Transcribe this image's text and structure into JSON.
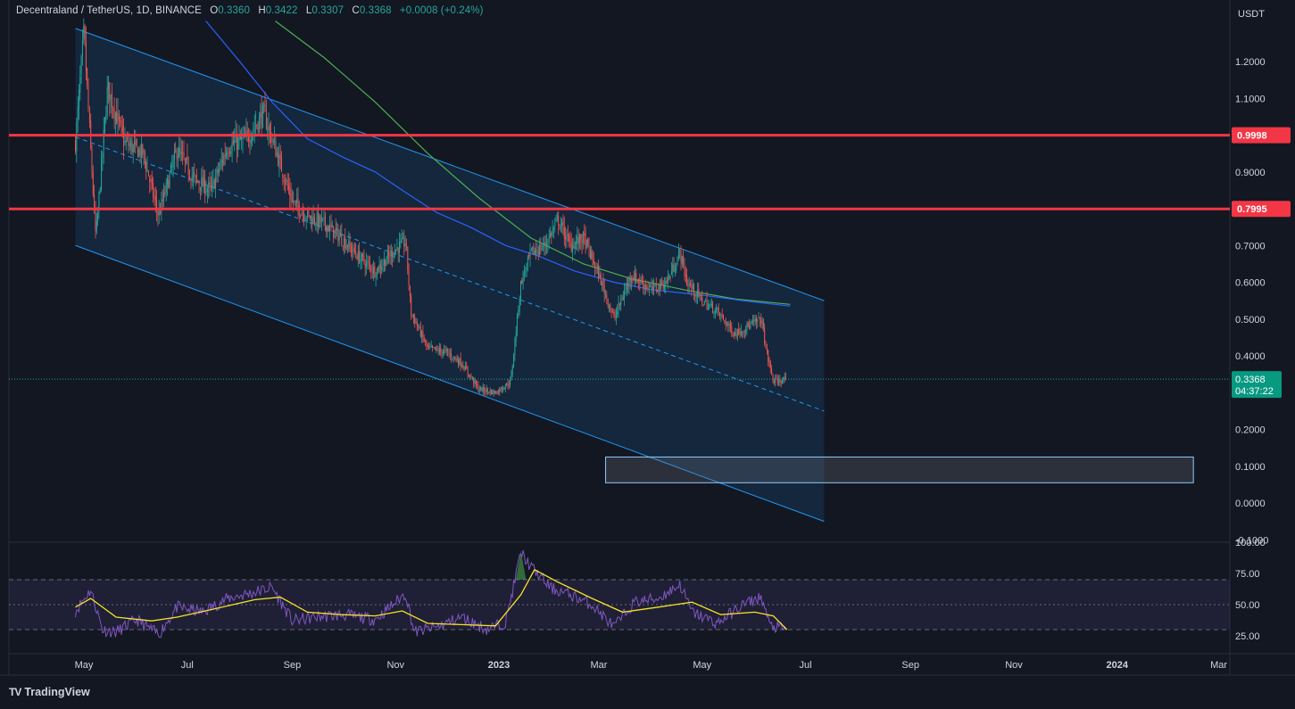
{
  "legend": {
    "symbol": "Decentraland / TetherUS, 1D, BINANCE",
    "o_label": "O",
    "o": "0.3360",
    "h_label": "H",
    "h": "0.3422",
    "l_label": "L",
    "l": "0.3307",
    "c_label": "C",
    "c": "0.3368",
    "change": "+0.0008 (+0.24%)"
  },
  "axis_unit": "USDT",
  "branding": {
    "logo_mark": "TV",
    "name": "TradingView"
  },
  "colors": {
    "background": "#131722",
    "up": "#26a69a",
    "down": "#ef5350",
    "resistance": "#f23645",
    "channel": "#2196f3",
    "ma_blue": "#2962ff",
    "ma_green": "#4caf50",
    "rsi_line": "#7e57c2",
    "rsi_ma": "#f5e32a",
    "price_tag": "#089981"
  },
  "chart_data": [
    {
      "type": "candlestick",
      "title": "Decentraland / TetherUS, 1D, BINANCE",
      "ylabel": "USDT",
      "ylim": [
        -0.1,
        1.3
      ],
      "y_ticks": [
        "1.2000",
        "1.1000",
        "1.0000",
        "0.9000",
        "0.8000",
        "0.7000",
        "0.6000",
        "0.5000",
        "0.4000",
        "0.3000",
        "0.2000",
        "0.1000",
        "0.0000",
        "-0.1000"
      ],
      "x_ticks": [
        "May",
        "Jul",
        "Sep",
        "Nov",
        "2023",
        "Mar",
        "May",
        "Jul",
        "Sep",
        "Nov",
        "2024",
        "Mar"
      ],
      "x_range": [
        "2022-04",
        "2024-03"
      ],
      "last_price": {
        "value": 0.3368,
        "label": "0.3368",
        "countdown": "04:37:22"
      },
      "horizontal_lines": [
        {
          "value": 0.9998,
          "label": "0.9998"
        },
        {
          "value": 0.7995,
          "label": "0.7995"
        }
      ],
      "channel": {
        "start_date": "2022-04-26",
        "end_date": "2023-07-12",
        "upper_start": 1.29,
        "upper_end": 0.55,
        "lower_start": 0.7,
        "lower_end": -0.05,
        "mid_start": 0.995,
        "mid_end": 0.25
      },
      "support_zone": {
        "from_date": "2023-03-05",
        "to_date": "2024-02-15",
        "low": 0.055,
        "high": 0.125
      },
      "price_path": [
        [
          "2022-04-26",
          0.98
        ],
        [
          "2022-05-01",
          1.28
        ],
        [
          "2022-05-08",
          0.72
        ],
        [
          "2022-05-15",
          1.13
        ],
        [
          "2022-05-25",
          0.98
        ],
        [
          "2022-06-05",
          0.95
        ],
        [
          "2022-06-14",
          0.78
        ],
        [
          "2022-06-25",
          0.96
        ],
        [
          "2022-07-05",
          0.88
        ],
        [
          "2022-07-15",
          0.85
        ],
        [
          "2022-07-25",
          0.97
        ],
        [
          "2022-08-05",
          0.99
        ],
        [
          "2022-08-15",
          1.06
        ],
        [
          "2022-08-25",
          0.92
        ],
        [
          "2022-09-01",
          0.82
        ],
        [
          "2022-09-10",
          0.78
        ],
        [
          "2022-09-20",
          0.76
        ],
        [
          "2022-09-30",
          0.72
        ],
        [
          "2022-10-10",
          0.67
        ],
        [
          "2022-10-20",
          0.63
        ],
        [
          "2022-11-01",
          0.69
        ],
        [
          "2022-11-07",
          0.71
        ],
        [
          "2022-11-10",
          0.52
        ],
        [
          "2022-11-20",
          0.42
        ],
        [
          "2022-12-01",
          0.41
        ],
        [
          "2022-12-10",
          0.38
        ],
        [
          "2022-12-20",
          0.31
        ],
        [
          "2022-12-30",
          0.3
        ],
        [
          "2023-01-08",
          0.33
        ],
        [
          "2023-01-14",
          0.6
        ],
        [
          "2023-01-20",
          0.68
        ],
        [
          "2023-01-28",
          0.7
        ],
        [
          "2023-02-05",
          0.77
        ],
        [
          "2023-02-12",
          0.7
        ],
        [
          "2023-02-20",
          0.72
        ],
        [
          "2023-03-01",
          0.62
        ],
        [
          "2023-03-10",
          0.5
        ],
        [
          "2023-03-20",
          0.62
        ],
        [
          "2023-04-01",
          0.58
        ],
        [
          "2023-04-10",
          0.6
        ],
        [
          "2023-04-18",
          0.68
        ],
        [
          "2023-04-22",
          0.6
        ],
        [
          "2023-05-01",
          0.55
        ],
        [
          "2023-05-10",
          0.52
        ],
        [
          "2023-05-20",
          0.46
        ],
        [
          "2023-05-28",
          0.48
        ],
        [
          "2023-06-05",
          0.5
        ],
        [
          "2023-06-08",
          0.41
        ],
        [
          "2023-06-12",
          0.33
        ],
        [
          "2023-06-20",
          0.3368
        ]
      ],
      "ma_blue": [
        [
          "2022-07-12",
          1.31
        ],
        [
          "2022-08-01",
          1.2
        ],
        [
          "2022-08-20",
          1.09
        ],
        [
          "2022-09-10",
          0.99
        ],
        [
          "2022-10-01",
          0.94
        ],
        [
          "2022-10-20",
          0.9
        ],
        [
          "2022-11-05",
          0.85
        ],
        [
          "2022-11-25",
          0.79
        ],
        [
          "2022-12-15",
          0.75
        ],
        [
          "2023-01-05",
          0.7
        ],
        [
          "2023-01-25",
          0.67
        ],
        [
          "2023-02-15",
          0.63
        ],
        [
          "2023-03-10",
          0.6
        ],
        [
          "2023-04-01",
          0.58
        ],
        [
          "2023-05-01",
          0.565
        ],
        [
          "2023-05-25",
          0.55
        ],
        [
          "2023-06-22",
          0.535
        ]
      ],
      "ma_green": [
        [
          "2022-08-22",
          1.31
        ],
        [
          "2022-09-20",
          1.21
        ],
        [
          "2022-10-20",
          1.09
        ],
        [
          "2022-11-20",
          0.95
        ],
        [
          "2022-12-20",
          0.83
        ],
        [
          "2023-01-20",
          0.72
        ],
        [
          "2023-02-20",
          0.65
        ],
        [
          "2023-03-20",
          0.61
        ],
        [
          "2023-04-20",
          0.58
        ],
        [
          "2023-05-20",
          0.555
        ],
        [
          "2023-06-22",
          0.54
        ]
      ]
    },
    {
      "type": "line",
      "title": "RSI",
      "ylim": [
        20,
        100
      ],
      "y_ticks": [
        "100.00",
        "75.00",
        "50.00",
        "25.00"
      ],
      "bands": {
        "upper": 70,
        "middle": 50,
        "lower": 30
      },
      "rsi_path": [
        [
          "2022-04-26",
          45
        ],
        [
          "2022-05-05",
          62
        ],
        [
          "2022-05-12",
          30
        ],
        [
          "2022-05-20",
          28
        ],
        [
          "2022-06-01",
          38
        ],
        [
          "2022-06-14",
          26
        ],
        [
          "2022-06-25",
          48
        ],
        [
          "2022-07-10",
          44
        ],
        [
          "2022-07-25",
          55
        ],
        [
          "2022-08-10",
          60
        ],
        [
          "2022-08-20",
          64
        ],
        [
          "2022-09-01",
          37
        ],
        [
          "2022-09-15",
          40
        ],
        [
          "2022-10-01",
          42
        ],
        [
          "2022-10-20",
          38
        ],
        [
          "2022-11-01",
          52
        ],
        [
          "2022-11-07",
          59
        ],
        [
          "2022-11-12",
          28
        ],
        [
          "2022-11-25",
          32
        ],
        [
          "2022-12-10",
          40
        ],
        [
          "2022-12-25",
          30
        ],
        [
          "2023-01-05",
          36
        ],
        [
          "2023-01-14",
          92
        ],
        [
          "2023-01-20",
          80
        ],
        [
          "2023-02-01",
          63
        ],
        [
          "2023-02-12",
          58
        ],
        [
          "2023-02-25",
          50
        ],
        [
          "2023-03-10",
          32
        ],
        [
          "2023-03-22",
          52
        ],
        [
          "2023-04-05",
          55
        ],
        [
          "2023-04-18",
          66
        ],
        [
          "2023-04-25",
          44
        ],
        [
          "2023-05-10",
          35
        ],
        [
          "2023-05-25",
          50
        ],
        [
          "2023-06-05",
          56
        ],
        [
          "2023-06-10",
          33
        ],
        [
          "2023-06-20",
          30
        ]
      ],
      "rsi_ma_path": [
        [
          "2022-04-26",
          48
        ],
        [
          "2022-05-05",
          55
        ],
        [
          "2022-05-20",
          40
        ],
        [
          "2022-06-10",
          37
        ],
        [
          "2022-06-25",
          40
        ],
        [
          "2022-07-15",
          46
        ],
        [
          "2022-08-10",
          54
        ],
        [
          "2022-08-25",
          56
        ],
        [
          "2022-09-10",
          44
        ],
        [
          "2022-09-30",
          42
        ],
        [
          "2022-10-20",
          41
        ],
        [
          "2022-11-05",
          45
        ],
        [
          "2022-11-20",
          35
        ],
        [
          "2022-12-10",
          34
        ],
        [
          "2022-12-30",
          33
        ],
        [
          "2023-01-14",
          58
        ],
        [
          "2023-01-22",
          78
        ],
        [
          "2023-02-05",
          68
        ],
        [
          "2023-02-25",
          55
        ],
        [
          "2023-03-15",
          44
        ],
        [
          "2023-04-05",
          48
        ],
        [
          "2023-04-25",
          52
        ],
        [
          "2023-05-12",
          42
        ],
        [
          "2023-06-01",
          44
        ],
        [
          "2023-06-12",
          41
        ],
        [
          "2023-06-20",
          30
        ]
      ]
    }
  ]
}
